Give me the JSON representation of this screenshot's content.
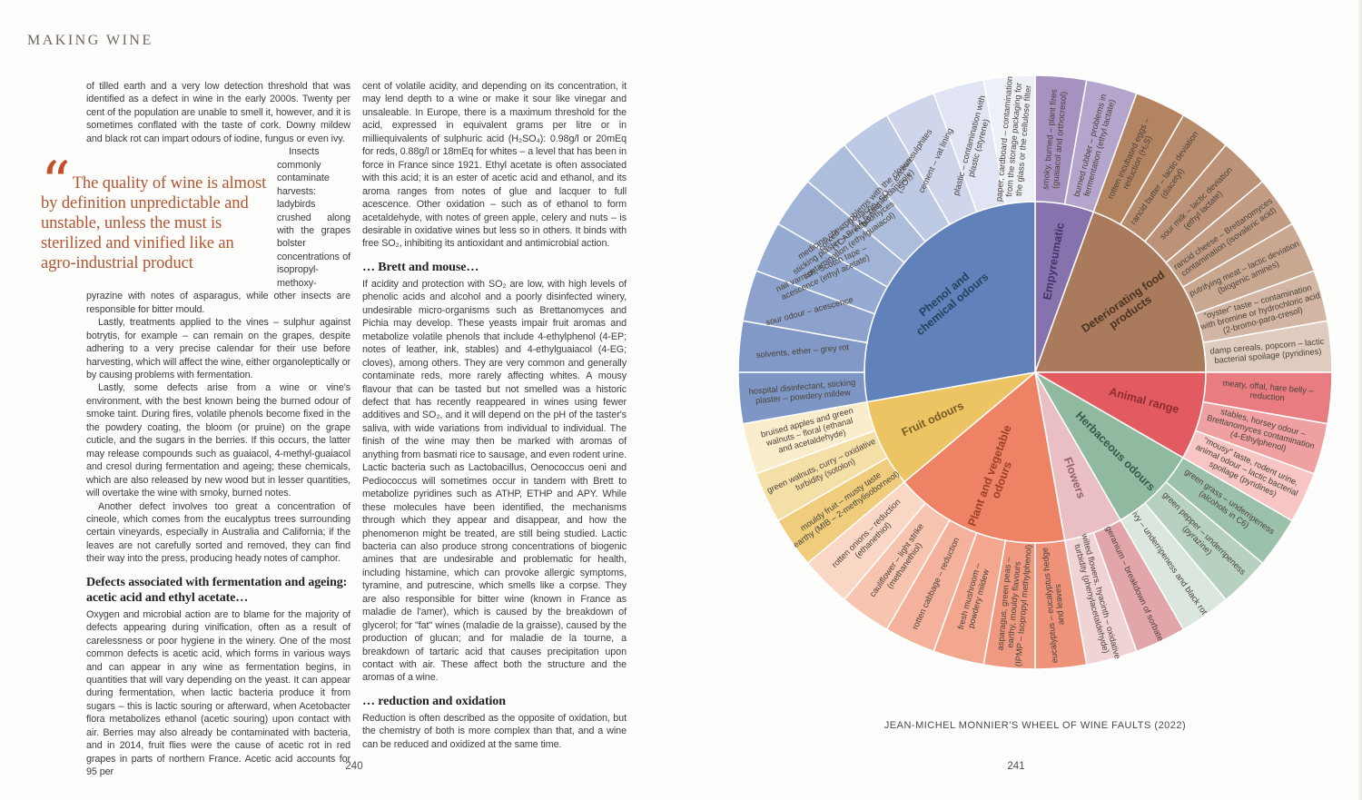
{
  "book": {
    "running_head": "MAKING WINE",
    "left_page_number": "240",
    "right_page_number": "241"
  },
  "left_page": {
    "column1": {
      "para1": "of tilled earth and a very low detection threshold that was identified as a defect in wine in the early 2000s. Twenty per cent of the population are unable to smell it, however, and it is sometimes conflated with the taste of cork. Downy mildew and black rot can impart odours of iodine, fungus or even ivy.",
      "quote_glyph": "“",
      "pull_quote": "The quality of wine is almost by definition unpredictable and unstable, unless the must is sterilized and vinified like an agro-industrial product",
      "para1b": "Insects commonly contaminate harvests: ladybirds crushed along with the grapes bolster concentrations of isopropyl-methoxy-pyrazine with notes of asparagus, while other insects are responsible for bitter mould.",
      "para2": "Lastly, treatments applied to the vines – sulphur against botrytis, for example – can remain on the grapes, despite adhering to a very precise calendar for their use before harvesting, which will affect the wine, either organoleptically or by causing problems with fermentation.",
      "para3": "Lastly, some defects arise from a wine or vine's environment, with the best known being the burned odour of smoke taint. During fires, volatile phenols become fixed in the the powdery coating, the bloom (or pruine) on the grape cuticle, and the sugars in the berries. If this occurs, the latter may release compounds such as guaiacol, 4-methyl-guaiacol and cresol during fermentation and ageing; these chemicals, which are also released by new wood but in lesser quantities, will overtake the wine with smoky, burned notes.",
      "para4": "Another defect involves too great a concentration of cineole, which comes from the eucalyptus trees surrounding certain vineyards, especially in Australia and California; if the leaves are not carefully sorted and removed, they can find their way into the press, producing heady notes of camphor.",
      "heading": "Defects associated with fermentation and ageing: acetic acid and ethyl acetate…",
      "para5": "Oxygen and microbial action are to blame for the majority of defects appearing during vinification, often as a result of carelessness or poor hygiene in the winery. One of the most common defects is acetic acid, which forms in various ways and can appear in any wine as fermentation begins, in quantities that will vary depending on the yeast. It can appear during fermentation, when lactic bacteria produce it from sugars – this is lactic souring or afterward, when Acetobacter flora metabolizes ethanol (acetic souring) upon contact with air. Berries may also already be contaminated with bacteria, and in 2014, fruit flies were the cause of acetic rot in red grapes in parts of northern France. Acetic acid accounts for 95 per"
    },
    "column2": {
      "para1": "cent of volatile acidity, and depending on its concentration, it may lend depth to a wine or make it sour like vinegar and unsaleable. In Europe, there is a maximum threshold for the acid, expressed in equivalent grams per litre or in milliequivalents of sulphuric acid (H₂SO₄): 0.98g/l or 20mEq for reds, 0.88g/l or 18mEq for whites – a level that has been in force in France since 1921. Ethyl acetate is often associated with this acid; it is an ester of acetic acid and ethanol, and its aroma ranges from notes of glue and lacquer to full acescence. Other oxidation – such as of ethanol to form acetaldehyde, with notes of green apple, celery and nuts – is desirable in oxidative wines but less so in others. It binds with free SO₂, inhibiting its antioxidant and antimicrobial action.",
      "heading1": "… Brett and mouse…",
      "para2": "If acidity and protection with SO₂ are low, with high levels of phenolic acids and alcohol and a poorly disinfected winery, undesirable micro-organisms such as Brettanomyces and Pichia may develop. These yeasts impair fruit aromas and metabolize volatile phenols that include 4-ethylphenol (4-EP; notes of leather, ink, stables) and 4-ethylguaiacol (4-EG; cloves), among others. They are very common and generally contaminate reds, more rarely affecting whites. A mousy flavour that can be tasted but not smelled was a historic defect that has recently reappeared in wines using fewer additives and SO₂, and it will depend on the pH of the taster's saliva, with wide variations from individual to individual. The finish of the wine may then be marked with aromas of anything from basmati rice to sausage, and even rodent urine. Lactic bacteria such as Lactobacillus, Oenococcus oeni and Pediococcus will sometimes occur in tandem with Brett to metabolize pyridines such as ATHP, ETHP and APY. While these molecules have been identified, the mechanisms through which they appear and disappear, and how the phenomenon might be treated, are still being studied. Lactic bacteria can also produce strong concentrations of biogenic amines that are undesirable and problematic for health, including histamine, which can provoke allergic symptoms, tyramine, and putrescine, which smells like a corpse. They are also responsible for bitter wine (known in France as maladie de l'amer), which is caused by the breakdown of glycerol; for \"fat\" wines (maladie de la graisse), caused by the production of glucan; and for maladie de la tourne, a breakdown of tartaric acid that causes precipitation upon contact with air. These affect both the structure and the aromas of a wine.",
      "heading2": "… reduction and oxidation",
      "para3": "Reduction is often described as the opposite of oxidation, but the chemistry of both is more complex than that, and a wine can be reduced and oxidized at the same time."
    }
  },
  "right_page": {
    "caption": "JEAN-MICHEL MONNIER'S WHEEL OF WINE FAULTS (2022)"
  },
  "chart_data": {
    "type": "sunburst",
    "title": "Jean-Michel Monnier's Wheel of Wine Faults (2022)",
    "rings": [
      "odour-category",
      "fault-descriptor"
    ],
    "segment_angle_deg": 10,
    "start_angle_deg": 0,
    "outer_radius": 327,
    "inner_radius": 188,
    "label_radius": 257,
    "inner_label_radius": 124,
    "segment_label_color": "#4a423b",
    "groups": [
      {
        "label": "Empyreumatic",
        "label_lines": [
          "Empyreumatic"
        ],
        "color": "#8672ad",
        "label_color": "#443468",
        "segments": [
          {
            "lines": [
              "smoky, burned – plant fires",
              "(guaiacol and orthocresol)"
            ],
            "color": "#a592c0"
          },
          {
            "lines": [
              "burned rubber – problems in",
              "fermentation (ethyl lactate)"
            ],
            "color": "#b4a5cc"
          }
        ]
      },
      {
        "label": "Deteriorating food products",
        "label_lines": [
          "Deteriorating food",
          "products"
        ],
        "color": "#a97a5b",
        "label_color": "#4a3322",
        "segments": [
          {
            "lines": [
              "rotten incubated eggs –",
              "reduction (H₂S)"
            ],
            "color": "#b28462"
          },
          {
            "lines": [
              "rancid butter – lactic deviation",
              "(diacetyl)"
            ],
            "color": "#b78c6d"
          },
          {
            "lines": [
              "sour milk – lactic deviation",
              "(ethyl lactate)"
            ],
            "color": "#bc9378"
          },
          {
            "lines": [
              "rancid cheese – Brettanomyces",
              "contamination (isovaleric acid)"
            ],
            "color": "#c29d84"
          },
          {
            "lines": [
              "putrifying meat – lactic deviation",
              "(biogenic amines)"
            ],
            "color": "#c9a892"
          },
          {
            "lines": [
              "“oyster” taste – contamination",
              "with bromine or hydrochloric acid",
              "(2-bromo-para-cresol)"
            ],
            "color": "#d2b5a2"
          },
          {
            "lines": [
              "damp cereals, popcorn – lactic",
              "bacterial spoilage (pyridines)"
            ],
            "color": "#dfccbe"
          }
        ]
      },
      {
        "label": "Animal range",
        "label_lines": [
          "Animal range"
        ],
        "color": "#e15b60",
        "label_color": "#8c2b31",
        "segments": [
          {
            "lines": [
              "meaty, offal, hare belly –",
              "reduction"
            ],
            "color": "#e97c80"
          },
          {
            "lines": [
              "stables, horsey odour –",
              "Brettanomyces contamination",
              "(4-Ethylphenol)"
            ],
            "color": "#efa1a1"
          },
          {
            "lines": [
              "“mousy” taste, rodent urine,",
              "animal odour – lactic bacterial",
              "spoilage (pyridines)"
            ],
            "color": "#f6c5c4"
          }
        ]
      },
      {
        "label": "Herbaceous odours",
        "label_lines": [
          "Herbaceous odours"
        ],
        "color": "#8fbaa0",
        "label_color": "#37584a",
        "segments": [
          {
            "lines": [
              "green grass – underripeness",
              "(alcohols in C6)"
            ],
            "color": "#9cc1ab"
          },
          {
            "lines": [
              "green pepper – underripeness",
              "(pyrazine)"
            ],
            "color": "#b6d1c0"
          },
          {
            "lines": [
              "ivy – underripeness and black rot"
            ],
            "color": "#dbe7de"
          }
        ]
      },
      {
        "label": "Flowers",
        "label_lines": [
          "Flowers"
        ],
        "color": "#eabfc4",
        "label_color": "#95626a",
        "segments": [
          {
            "lines": [
              "geranium – breakdown of sorbate"
            ],
            "color": "#e2a5a9"
          },
          {
            "lines": [
              "wilted flowers, hyacinth – oxidative",
              "turbidity (phenylacetaldehyde)"
            ],
            "color": "#f0d3d5"
          }
        ]
      },
      {
        "label": "Plant and vegetable odours",
        "label_lines": [
          "Plant and vegetable",
          "odours"
        ],
        "color": "#ed8265",
        "label_color": "#9c4027",
        "segments": [
          {
            "lines": [
              "eucalyptus – eucalyptus hedge",
              "and leaves"
            ],
            "color": "#ee937a"
          },
          {
            "lines": [
              "asparagus, green peas –",
              "earthy, mouldy flavours",
              "(IPMP – Isopropyl methylphenol)"
            ],
            "color": "#ef9a80"
          },
          {
            "lines": [
              "fresh mushroom –",
              "powdery mildew"
            ],
            "color": "#f2a78e"
          },
          {
            "lines": [
              "rotten cabbage – reduction"
            ],
            "color": "#f4b29c"
          },
          {
            "lines": [
              "cauliflower – light strike",
              "(methanethiol)"
            ],
            "color": "#f7c4af"
          },
          {
            "lines": [
              "rotten onions – reduction",
              "(ethanethiol)"
            ],
            "color": "#fad6c4"
          }
        ]
      },
      {
        "label": "Fruit odours",
        "label_lines": [
          "Fruit odours"
        ],
        "color": "#ecc464",
        "label_color": "#755d22",
        "segments": [
          {
            "lines": [
              "mouldy fruit – musty taste",
              "earthy (MIB – 2-methylisoborneol)"
            ],
            "color": "#efcd7c"
          },
          {
            "lines": [
              "green walnuts, curry – oxidative",
              "turbidity (sotolon)"
            ],
            "color": "#f4dfa6"
          },
          {
            "lines": [
              "bruised apples and green",
              "walnuts – floral (ethanal",
              "and acetaldehyde)"
            ],
            "color": "#f9edcb"
          }
        ]
      },
      {
        "label": "Phenol and chemical odours",
        "label_lines": [
          "Phenol and",
          "chemical odours"
        ],
        "color": "#6081b9",
        "label_color": "#27405f",
        "segments": [
          {
            "lines": [
              "hospital disinfectant, sticking",
              "plaster – powdery mildew"
            ],
            "color": "#7e96c4"
          },
          {
            "lines": [
              "solvents, ether – grey rot"
            ],
            "color": "#8299c7"
          },
          {
            "lines": [
              "sour odour – acescence"
            ],
            "color": "#8ca2cc"
          },
          {
            "lines": [
              "nail varnish, Scotch tape –",
              "acescence (ethyl acetate)"
            ],
            "color": "#96abd1"
          },
          {
            "lines": [
              "medicine chest, gouache,",
              "sticking plaster – Brettanomyces",
              "contamination (ethylguaiacol)"
            ],
            "color": "#a1b3d6"
          },
          {
            "lines": [
              "corked – problems with the closure",
              "(TCA – 2,4,6 Trichloroanisole)"
            ],
            "color": "#adbddc"
          },
          {
            "lines": [
              "burning SO₂ – excess sulphites",
              "(SO₂)"
            ],
            "color": "#bec9e4"
          },
          {
            "lines": [
              "cement – vat lining"
            ],
            "color": "#cfd6ec"
          },
          {
            "lines": [
              "plastic – contamination with",
              "plastic (styrene)"
            ],
            "color": "#e0e4f3"
          },
          {
            "lines": [
              "paper, cardboard – contamination",
              "from the storage packaging for",
              "the glass or the cellulose filter"
            ],
            "color": "#eef0f8"
          }
        ]
      }
    ]
  }
}
